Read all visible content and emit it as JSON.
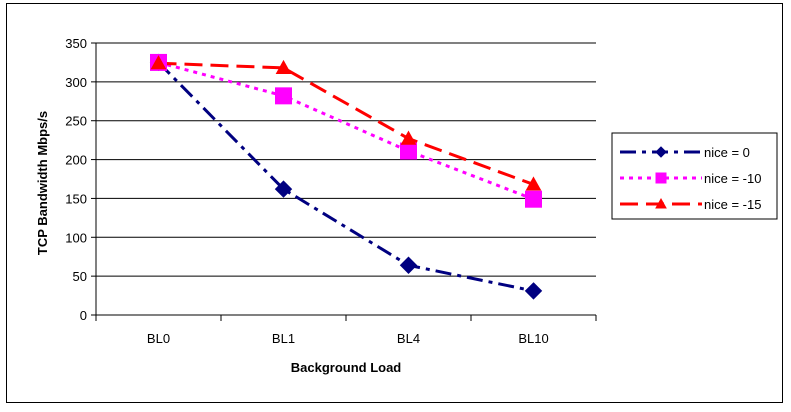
{
  "chart_data": {
    "type": "line",
    "categories": [
      "BL0",
      "BL1",
      "BL4",
      "BL10"
    ],
    "series": [
      {
        "name": "nice = 0",
        "values": [
          325,
          162,
          64,
          31
        ],
        "color": "#000080",
        "marker": "diamond",
        "dash": "dash-dot"
      },
      {
        "name": "nice = -10",
        "values": [
          325,
          282,
          211,
          149
        ],
        "color": "#FF00FF",
        "marker": "square",
        "dash": "dotted"
      },
      {
        "name": "nice = -15",
        "values": [
          324,
          318,
          227,
          168
        ],
        "color": "#FF0000",
        "marker": "triangle",
        "dash": "dashed"
      }
    ],
    "xlabel": "Background Load",
    "ylabel": "TCP Bandwidth Mbps/s",
    "ylim": [
      0,
      350
    ],
    "yticks": [
      0,
      50,
      100,
      150,
      200,
      250,
      300,
      350
    ],
    "grid": "horizontal",
    "legend": "right"
  }
}
